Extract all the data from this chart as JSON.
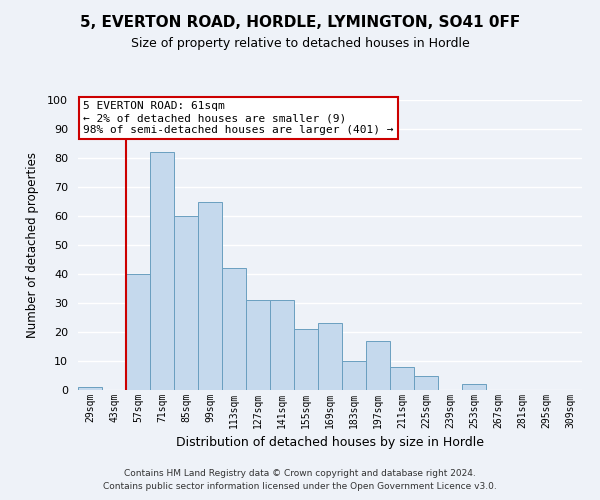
{
  "title": "5, EVERTON ROAD, HORDLE, LYMINGTON, SO41 0FF",
  "subtitle": "Size of property relative to detached houses in Hordle",
  "xlabel": "Distribution of detached houses by size in Hordle",
  "ylabel": "Number of detached properties",
  "bar_color": "#c5d9ed",
  "bar_edge_color": "#6a9fc0",
  "bin_labels": [
    "29sqm",
    "43sqm",
    "57sqm",
    "71sqm",
    "85sqm",
    "99sqm",
    "113sqm",
    "127sqm",
    "141sqm",
    "155sqm",
    "169sqm",
    "183sqm",
    "197sqm",
    "211sqm",
    "225sqm",
    "239sqm",
    "253sqm",
    "267sqm",
    "281sqm",
    "295sqm",
    "309sqm"
  ],
  "bin_counts": [
    1,
    0,
    40,
    82,
    60,
    65,
    42,
    31,
    31,
    21,
    23,
    10,
    17,
    8,
    5,
    0,
    2,
    0,
    0,
    0,
    0
  ],
  "vline_index": 2,
  "vline_color": "#cc0000",
  "annotation_line1": "5 EVERTON ROAD: 61sqm",
  "annotation_line2": "← 2% of detached houses are smaller (9)",
  "annotation_line3": "98% of semi-detached houses are larger (401) →",
  "annotation_box_color": "#ffffff",
  "annotation_box_edge_color": "#cc0000",
  "ylim": [
    0,
    100
  ],
  "yticks": [
    0,
    10,
    20,
    30,
    40,
    50,
    60,
    70,
    80,
    90,
    100
  ],
  "background_color": "#eef2f8",
  "grid_color": "#ffffff",
  "footer_line1": "Contains HM Land Registry data © Crown copyright and database right 2024.",
  "footer_line2": "Contains public sector information licensed under the Open Government Licence v3.0."
}
